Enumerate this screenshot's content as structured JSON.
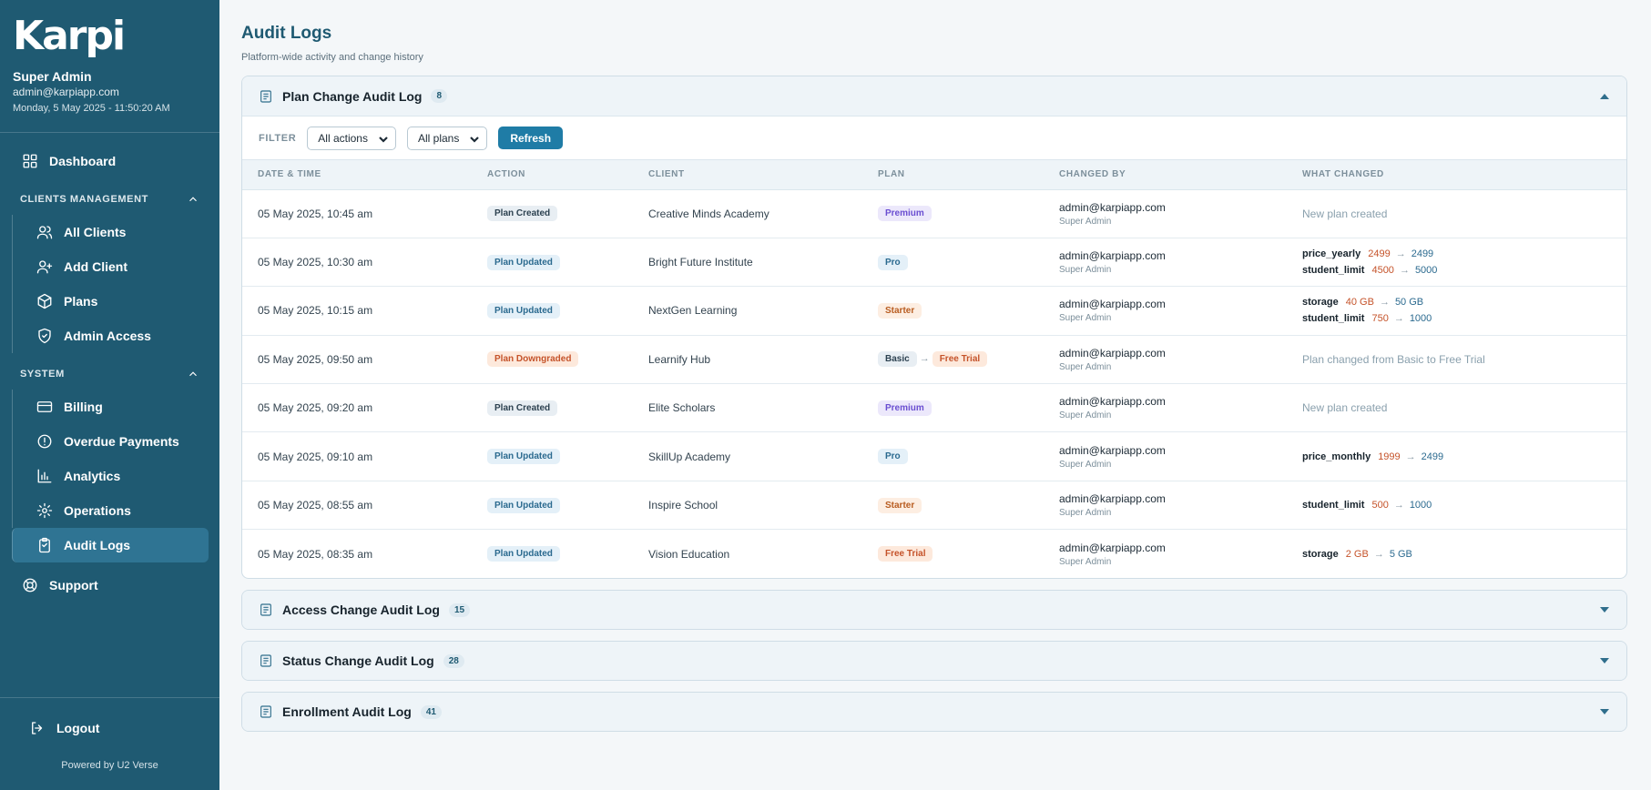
{
  "sidebar": {
    "logo": "Karpi",
    "user_name": "Super Admin",
    "user_email": "admin@karpiapp.com",
    "datetime": "Monday, 5 May 2025 - 11:50:20 AM",
    "dashboard": "Dashboard",
    "clients_section": "CLIENTS MANAGEMENT",
    "clients_items": [
      "All Clients",
      "Add Client",
      "Plans",
      "Admin Access"
    ],
    "system_section": "SYSTEM",
    "system_items": [
      "Billing",
      "Overdue Payments",
      "Analytics",
      "Operations",
      "Audit Logs"
    ],
    "support": "Support",
    "logout": "Logout",
    "powered_by": "Powered by U2 Verse"
  },
  "page": {
    "title": "Audit Logs",
    "subtitle": "Platform-wide activity and change history"
  },
  "plan_log": {
    "title": "Plan Change Audit Log",
    "count": "8",
    "filter_label": "FILTER",
    "actions_select": "All actions",
    "plans_select": "All plans",
    "refresh": "Refresh",
    "columns": [
      "DATE & TIME",
      "ACTION",
      "CLIENT",
      "PLAN",
      "CHANGED BY",
      "WHAT CHANGED"
    ],
    "rows": [
      {
        "date": "05 May 2025, 10:45 am",
        "action": "Plan Created",
        "client": "Creative Minds Academy",
        "plan": "Premium",
        "by": "admin@karpiapp.com",
        "role": "Super Admin",
        "note": "New plan created"
      },
      {
        "date": "05 May 2025, 10:30 am",
        "action": "Plan Updated",
        "client": "Bright Future Institute",
        "plan": "Pro",
        "by": "admin@karpiapp.com",
        "role": "Super Admin",
        "changes": [
          {
            "key": "price_yearly",
            "old": "2499",
            "new": "2499"
          },
          {
            "key": "student_limit",
            "old": "4500",
            "new": "5000"
          }
        ]
      },
      {
        "date": "05 May 2025, 10:15 am",
        "action": "Plan Updated",
        "client": "NextGen Learning",
        "plan": "Starter",
        "by": "admin@karpiapp.com",
        "role": "Super Admin",
        "changes": [
          {
            "key": "storage",
            "old": "40 GB",
            "new": "50 GB"
          },
          {
            "key": "student_limit",
            "old": "750",
            "new": "1000"
          }
        ]
      },
      {
        "date": "05 May 2025, 09:50 am",
        "action": "Plan Downgraded",
        "client": "Learnify Hub",
        "plan": "Basic",
        "plan_to": "Free Trial",
        "by": "admin@karpiapp.com",
        "role": "Super Admin",
        "note": "Plan changed from Basic to Free Trial"
      },
      {
        "date": "05 May 2025, 09:20 am",
        "action": "Plan Created",
        "client": "Elite Scholars",
        "plan": "Premium",
        "by": "admin@karpiapp.com",
        "role": "Super Admin",
        "note": "New plan created"
      },
      {
        "date": "05 May 2025, 09:10 am",
        "action": "Plan Updated",
        "client": "SkillUp Academy",
        "plan": "Pro",
        "by": "admin@karpiapp.com",
        "role": "Super Admin",
        "changes": [
          {
            "key": "price_monthly",
            "old": "1999",
            "new": "2499"
          }
        ]
      },
      {
        "date": "05 May 2025, 08:55 am",
        "action": "Plan Updated",
        "client": "Inspire School",
        "plan": "Starter",
        "by": "admin@karpiapp.com",
        "role": "Super Admin",
        "changes": [
          {
            "key": "student_limit",
            "old": "500",
            "new": "1000"
          }
        ]
      },
      {
        "date": "05 May 2025, 08:35 am",
        "action": "Plan Updated",
        "client": "Vision Education",
        "plan": "Free Trial",
        "by": "admin@karpiapp.com",
        "role": "Super Admin",
        "changes": [
          {
            "key": "storage",
            "old": "2 GB",
            "new": "5 GB"
          }
        ]
      }
    ]
  },
  "collapsed_logs": [
    {
      "title": "Access Change Audit Log",
      "count": "15"
    },
    {
      "title": "Status Change Audit Log",
      "count": "28"
    },
    {
      "title": "Enrollment Audit Log",
      "count": "41"
    }
  ],
  "colors": {
    "sidebar": "#1f5a72",
    "accent": "#1f7ca6",
    "old_value": "#c5532a",
    "new_value": "#2b6a8f"
  },
  "icons": {
    "dashboard": "grid-icon",
    "all_clients": "users-icon",
    "add_client": "user-plus-icon",
    "plans": "box-icon",
    "admin_access": "shield-icon",
    "billing": "card-icon",
    "overdue": "alert-circle-icon",
    "analytics": "bar-chart-icon",
    "operations": "gear-icon",
    "audit_logs": "clipboard-icon",
    "support": "lifebuoy-icon",
    "logout": "logout-icon"
  }
}
